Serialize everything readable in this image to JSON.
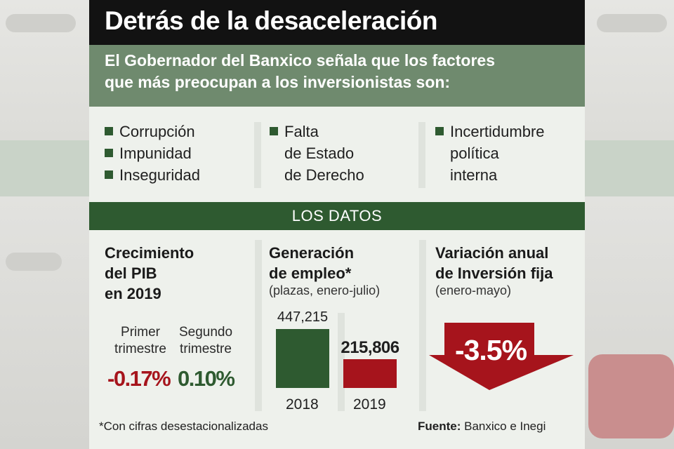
{
  "title": "Detrás de la desaceleración",
  "intro": {
    "line1": "El Gobernador del Banxico señala que los factores",
    "line2": "que más preocupan a los inversionistas son:"
  },
  "factors": {
    "col1": [
      "Corrupción",
      "Impunidad",
      "Inseguridad"
    ],
    "col2": [
      "Falta",
      "de Estado",
      "de Derecho"
    ],
    "col3": [
      "Incertidumbre",
      "política",
      "interna"
    ]
  },
  "datos_header": "LOS DATOS",
  "pib": {
    "title_lines": [
      "Crecimiento",
      "del PIB",
      "en 2019"
    ],
    "q1_label": [
      "Primer",
      "trimestre"
    ],
    "q1_value": "-0.17%",
    "q2_label": [
      "Segundo",
      "trimestre"
    ],
    "q2_value": "0.10%"
  },
  "empleo": {
    "title_lines": [
      "Generación",
      "de empleo*"
    ],
    "subtitle": "(plazas, enero-julio)"
  },
  "inversion": {
    "title_lines": [
      "Variación anual",
      "de Inversión fija"
    ],
    "subtitle": "(enero-mayo)",
    "value": "-3.5%"
  },
  "footnote": "*Con cifras desestacionalizadas",
  "source": {
    "label": "Fuente:",
    "text": " Banxico e Inegi"
  },
  "colors": {
    "green": "#2e5a30",
    "red": "#a6141c",
    "sage": "#6f8a6e"
  },
  "chart_data": [
    {
      "type": "bar",
      "title": "Generación de empleo* (plazas, enero-julio)",
      "categories": [
        "2018",
        "2019"
      ],
      "values": [
        447215,
        215806
      ],
      "value_labels": [
        "447,215",
        "215,806"
      ],
      "colors": [
        "#2e5a30",
        "#a6141c"
      ],
      "ylim": [
        0,
        447215
      ]
    },
    {
      "type": "table",
      "title": "Crecimiento del PIB en 2019",
      "categories": [
        "Primer trimestre",
        "Segundo trimestre"
      ],
      "values": [
        -0.17,
        0.1
      ],
      "unit": "%"
    },
    {
      "type": "table",
      "title": "Variación anual de Inversión fija (enero-mayo)",
      "values": [
        -3.5
      ],
      "unit": "%"
    }
  ]
}
